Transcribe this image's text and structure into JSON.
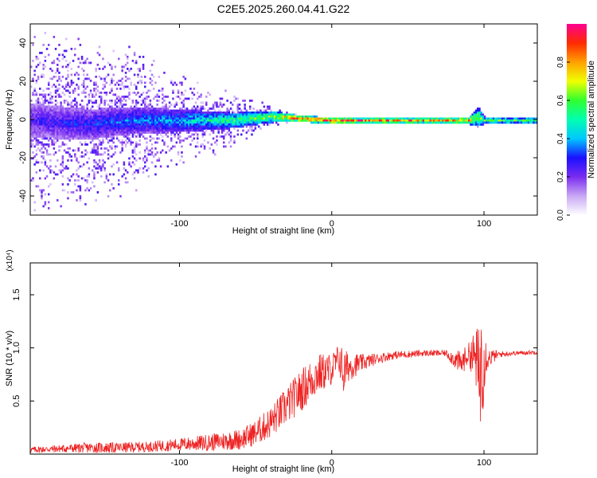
{
  "chart_data": [
    {
      "type": "heatmap",
      "title": "C2E5.2025.260.04.41.G22",
      "xlabel": "Height of straight line (km)",
      "ylabel": "Frequency (Hz)",
      "xlim": [
        -198,
        135
      ],
      "ylim": [
        -50,
        50
      ],
      "xticks": [
        -100,
        0,
        100
      ],
      "xtick_labels": [
        "-100",
        "0",
        "100"
      ],
      "yticks": [
        -40,
        -20,
        0,
        20,
        40
      ],
      "ytick_labels": [
        "-40",
        "-20",
        "0",
        "20",
        "40"
      ],
      "colorbar": {
        "label": "Normalized spectral amplitude",
        "range": [
          0,
          1
        ],
        "ticks": [
          0.0,
          0.2,
          0.4,
          0.6,
          0.8
        ],
        "tick_labels": [
          "0.0",
          "0.2",
          "0.4",
          "0.6",
          "0.8"
        ],
        "colors": [
          "#ffffff",
          "#c9a8f4",
          "#7a2cf0",
          "#1a10ff",
          "#00c8ff",
          "#00ffb0",
          "#30ff30",
          "#f0ff00",
          "#ffa000",
          "#ff2a00",
          "#ff0090"
        ]
      },
      "profile": [
        {
          "x": -198,
          "center": 0,
          "spread": 9,
          "scatter": 50,
          "amp": 0.25
        },
        {
          "x": -160,
          "center": -2,
          "spread": 8,
          "scatter": 45,
          "amp": 0.3
        },
        {
          "x": -130,
          "center": 0,
          "spread": 7,
          "scatter": 40,
          "amp": 0.35
        },
        {
          "x": -100,
          "center": 0,
          "spread": 6,
          "scatter": 25,
          "amp": 0.4
        },
        {
          "x": -65,
          "center": 0,
          "spread": 4,
          "scatter": 15,
          "amp": 0.55
        },
        {
          "x": -40,
          "center": 2,
          "spread": 3,
          "scatter": 6,
          "amp": 0.65
        },
        {
          "x": -22,
          "center": 1,
          "spread": 1.8,
          "scatter": 2,
          "amp": 0.85
        },
        {
          "x": 0,
          "center": 0,
          "spread": 1.5,
          "scatter": 1.5,
          "amp": 0.9
        },
        {
          "x": 50,
          "center": 0,
          "spread": 1.5,
          "scatter": 1.5,
          "amp": 0.8
        },
        {
          "x": 90,
          "center": 0,
          "spread": 2,
          "scatter": 2,
          "amp": 0.75
        },
        {
          "x": 96,
          "center": 2,
          "spread": 5,
          "scatter": 6,
          "amp": 0.6
        },
        {
          "x": 100,
          "center": 0,
          "spread": 2,
          "scatter": 2,
          "amp": 0.55
        },
        {
          "x": 135,
          "center": 0,
          "spread": 1.8,
          "scatter": 1.5,
          "amp": 0.55
        }
      ]
    },
    {
      "type": "line",
      "xlabel": "Height of straight line (km)",
      "ylabel": "SNR (10 * v/v)",
      "y_scale_label": "(x10⁴)",
      "xlim": [
        -198,
        135
      ],
      "ylim": [
        0,
        1.8
      ],
      "xticks": [
        -100,
        0,
        100
      ],
      "xtick_labels": [
        "-100",
        "0",
        "100"
      ],
      "yticks": [
        0.5,
        1.0,
        1.5
      ],
      "ytick_labels": [
        "0.5",
        "1.0",
        "1.5"
      ],
      "color": "#ee2222",
      "series": [
        {
          "name": "SNR",
          "x": [
            -198,
            -180,
            -160,
            -140,
            -120,
            -100,
            -80,
            -60,
            -50,
            -40,
            -30,
            -20,
            -10,
            0,
            5,
            8,
            10,
            20,
            30,
            40,
            60,
            75,
            80,
            85,
            90,
            95,
            97,
            99,
            100,
            102,
            110,
            120,
            135
          ],
          "y": [
            0.04,
            0.05,
            0.06,
            0.06,
            0.07,
            0.09,
            0.11,
            0.14,
            0.2,
            0.3,
            0.45,
            0.6,
            0.75,
            0.8,
            0.9,
            0.75,
            0.82,
            0.86,
            0.9,
            0.93,
            0.95,
            0.95,
            0.9,
            0.85,
            0.95,
            0.9,
            0.7,
            1.0,
            0.95,
            0.9,
            0.94,
            0.95,
            0.96
          ],
          "noise": [
            0.03,
            0.035,
            0.05,
            0.05,
            0.05,
            0.06,
            0.08,
            0.1,
            0.12,
            0.15,
            0.18,
            0.2,
            0.2,
            0.15,
            0.15,
            0.25,
            0.15,
            0.08,
            0.05,
            0.04,
            0.03,
            0.03,
            0.08,
            0.12,
            0.1,
            0.3,
            0.5,
            0.7,
            0.4,
            0.1,
            0.03,
            0.02,
            0.02
          ]
        }
      ]
    }
  ]
}
